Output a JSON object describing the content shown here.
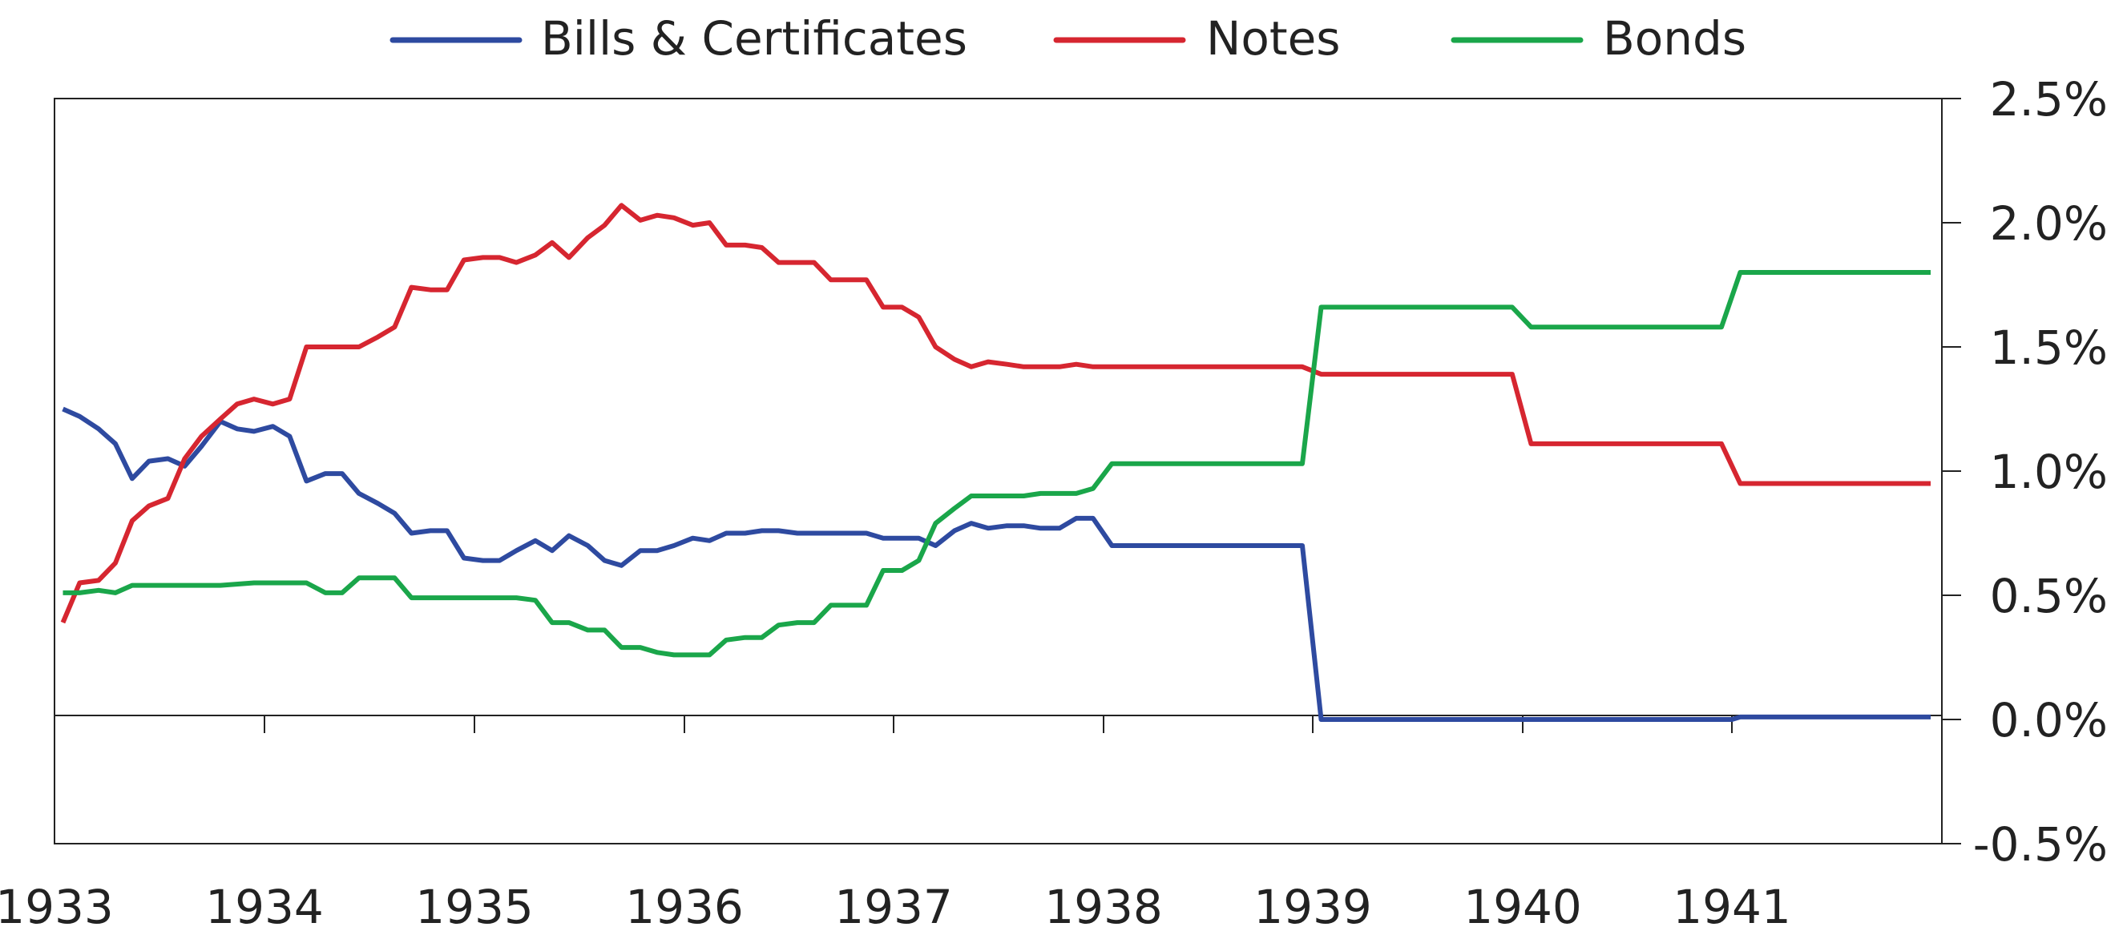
{
  "chart_data": {
    "type": "line",
    "title": "",
    "xlabel": "",
    "ylabel": "",
    "xlim": [
      1933.0,
      1942.0
    ],
    "ylim": [
      -0.5,
      2.5
    ],
    "x_ticks": [
      "1933",
      "1934",
      "1935",
      "1936",
      "1937",
      "1938",
      "1939",
      "1940",
      "1941"
    ],
    "y_ticks": [
      "2.5%",
      "2.0%",
      "1.5%",
      "1.0%",
      "0.5%",
      "0.0%",
      "-0.5%"
    ],
    "y_axis_side": "right",
    "legend_position": "top-center",
    "grid": false,
    "series": [
      {
        "name": "Bills & Certificates",
        "color": "#2e4aa0",
        "points": [
          [
            1933.04,
            1.25
          ],
          [
            1933.12,
            1.22
          ],
          [
            1933.21,
            1.17
          ],
          [
            1933.29,
            1.11
          ],
          [
            1933.37,
            0.97
          ],
          [
            1933.45,
            1.04
          ],
          [
            1933.54,
            1.05
          ],
          [
            1933.62,
            1.02
          ],
          [
            1933.7,
            1.1
          ],
          [
            1933.79,
            1.2
          ],
          [
            1933.87,
            1.17
          ],
          [
            1933.95,
            1.16
          ],
          [
            1934.04,
            1.18
          ],
          [
            1934.12,
            1.14
          ],
          [
            1934.2,
            0.96
          ],
          [
            1934.29,
            0.99
          ],
          [
            1934.37,
            0.99
          ],
          [
            1934.45,
            0.91
          ],
          [
            1934.54,
            0.87
          ],
          [
            1934.62,
            0.83
          ],
          [
            1934.7,
            0.75
          ],
          [
            1934.79,
            0.76
          ],
          [
            1934.87,
            0.76
          ],
          [
            1934.95,
            0.65
          ],
          [
            1935.04,
            0.64
          ],
          [
            1935.12,
            0.64
          ],
          [
            1935.2,
            0.68
          ],
          [
            1935.29,
            0.72
          ],
          [
            1935.37,
            0.68
          ],
          [
            1935.45,
            0.74
          ],
          [
            1935.54,
            0.7
          ],
          [
            1935.62,
            0.64
          ],
          [
            1935.7,
            0.62
          ],
          [
            1935.79,
            0.68
          ],
          [
            1935.87,
            0.68
          ],
          [
            1935.95,
            0.7
          ],
          [
            1936.04,
            0.73
          ],
          [
            1936.12,
            0.72
          ],
          [
            1936.2,
            0.75
          ],
          [
            1936.29,
            0.75
          ],
          [
            1936.37,
            0.76
          ],
          [
            1936.45,
            0.76
          ],
          [
            1936.54,
            0.75
          ],
          [
            1936.62,
            0.75
          ],
          [
            1936.7,
            0.75
          ],
          [
            1936.79,
            0.75
          ],
          [
            1936.87,
            0.75
          ],
          [
            1936.95,
            0.73
          ],
          [
            1937.04,
            0.73
          ],
          [
            1937.12,
            0.73
          ],
          [
            1937.2,
            0.7
          ],
          [
            1937.29,
            0.76
          ],
          [
            1937.37,
            0.79
          ],
          [
            1937.45,
            0.77
          ],
          [
            1937.54,
            0.78
          ],
          [
            1937.62,
            0.78
          ],
          [
            1937.7,
            0.77
          ],
          [
            1937.79,
            0.77
          ],
          [
            1937.87,
            0.81
          ],
          [
            1937.95,
            0.81
          ],
          [
            1938.04,
            0.7
          ],
          [
            1938.12,
            0.7
          ],
          [
            1938.95,
            0.7
          ],
          [
            1939.04,
            0.0
          ],
          [
            1939.95,
            0.0
          ],
          [
            1941.0,
            0.0
          ],
          [
            1941.04,
            0.01
          ],
          [
            1941.95,
            0.01
          ]
        ]
      },
      {
        "name": "Notes",
        "color": "#d62630",
        "points": [
          [
            1933.04,
            0.39
          ],
          [
            1933.12,
            0.55
          ],
          [
            1933.21,
            0.56
          ],
          [
            1933.29,
            0.63
          ],
          [
            1933.37,
            0.8
          ],
          [
            1933.45,
            0.86
          ],
          [
            1933.54,
            0.89
          ],
          [
            1933.62,
            1.05
          ],
          [
            1933.7,
            1.14
          ],
          [
            1933.79,
            1.21
          ],
          [
            1933.87,
            1.27
          ],
          [
            1933.95,
            1.29
          ],
          [
            1934.04,
            1.27
          ],
          [
            1934.12,
            1.29
          ],
          [
            1934.2,
            1.5
          ],
          [
            1934.29,
            1.5
          ],
          [
            1934.37,
            1.5
          ],
          [
            1934.45,
            1.5
          ],
          [
            1934.54,
            1.54
          ],
          [
            1934.62,
            1.58
          ],
          [
            1934.7,
            1.74
          ],
          [
            1934.79,
            1.73
          ],
          [
            1934.87,
            1.73
          ],
          [
            1934.95,
            1.85
          ],
          [
            1935.04,
            1.86
          ],
          [
            1935.12,
            1.86
          ],
          [
            1935.2,
            1.84
          ],
          [
            1935.29,
            1.87
          ],
          [
            1935.37,
            1.92
          ],
          [
            1935.45,
            1.86
          ],
          [
            1935.54,
            1.94
          ],
          [
            1935.62,
            1.99
          ],
          [
            1935.7,
            2.07
          ],
          [
            1935.79,
            2.01
          ],
          [
            1935.87,
            2.03
          ],
          [
            1935.95,
            2.02
          ],
          [
            1936.04,
            1.99
          ],
          [
            1936.12,
            2.0
          ],
          [
            1936.2,
            1.91
          ],
          [
            1936.29,
            1.91
          ],
          [
            1936.37,
            1.9
          ],
          [
            1936.45,
            1.84
          ],
          [
            1936.54,
            1.84
          ],
          [
            1936.62,
            1.84
          ],
          [
            1936.7,
            1.77
          ],
          [
            1936.79,
            1.77
          ],
          [
            1936.87,
            1.77
          ],
          [
            1936.95,
            1.66
          ],
          [
            1937.04,
            1.66
          ],
          [
            1937.12,
            1.62
          ],
          [
            1937.2,
            1.5
          ],
          [
            1937.29,
            1.45
          ],
          [
            1937.37,
            1.42
          ],
          [
            1937.45,
            1.44
          ],
          [
            1937.54,
            1.43
          ],
          [
            1937.62,
            1.42
          ],
          [
            1937.79,
            1.42
          ],
          [
            1937.87,
            1.43
          ],
          [
            1937.95,
            1.42
          ],
          [
            1938.95,
            1.42
          ],
          [
            1939.04,
            1.39
          ],
          [
            1939.95,
            1.39
          ],
          [
            1940.04,
            1.11
          ],
          [
            1940.95,
            1.11
          ],
          [
            1941.04,
            0.95
          ],
          [
            1941.95,
            0.95
          ]
        ]
      },
      {
        "name": "Bonds",
        "color": "#1aa64a",
        "points": [
          [
            1933.04,
            0.51
          ],
          [
            1933.12,
            0.51
          ],
          [
            1933.21,
            0.52
          ],
          [
            1933.29,
            0.51
          ],
          [
            1933.37,
            0.54
          ],
          [
            1933.62,
            0.54
          ],
          [
            1933.79,
            0.54
          ],
          [
            1933.95,
            0.55
          ],
          [
            1934.2,
            0.55
          ],
          [
            1934.29,
            0.51
          ],
          [
            1934.37,
            0.51
          ],
          [
            1934.45,
            0.57
          ],
          [
            1934.62,
            0.57
          ],
          [
            1934.7,
            0.49
          ],
          [
            1934.79,
            0.49
          ],
          [
            1935.2,
            0.49
          ],
          [
            1935.29,
            0.48
          ],
          [
            1935.37,
            0.39
          ],
          [
            1935.45,
            0.39
          ],
          [
            1935.54,
            0.36
          ],
          [
            1935.62,
            0.36
          ],
          [
            1935.7,
            0.29
          ],
          [
            1935.79,
            0.29
          ],
          [
            1935.87,
            0.27
          ],
          [
            1935.95,
            0.26
          ],
          [
            1936.04,
            0.26
          ],
          [
            1936.12,
            0.26
          ],
          [
            1936.2,
            0.32
          ],
          [
            1936.29,
            0.33
          ],
          [
            1936.37,
            0.33
          ],
          [
            1936.45,
            0.38
          ],
          [
            1936.54,
            0.39
          ],
          [
            1936.62,
            0.39
          ],
          [
            1936.7,
            0.46
          ],
          [
            1936.79,
            0.46
          ],
          [
            1936.87,
            0.46
          ],
          [
            1936.95,
            0.6
          ],
          [
            1937.04,
            0.6
          ],
          [
            1937.12,
            0.64
          ],
          [
            1937.2,
            0.79
          ],
          [
            1937.29,
            0.85
          ],
          [
            1937.37,
            0.9
          ],
          [
            1937.62,
            0.9
          ],
          [
            1937.7,
            0.91
          ],
          [
            1937.87,
            0.91
          ],
          [
            1937.95,
            0.93
          ],
          [
            1938.04,
            1.03
          ],
          [
            1938.95,
            1.03
          ],
          [
            1939.04,
            1.66
          ],
          [
            1939.95,
            1.66
          ],
          [
            1940.04,
            1.58
          ],
          [
            1940.95,
            1.58
          ],
          [
            1941.04,
            1.8
          ],
          [
            1941.95,
            1.8
          ]
        ]
      }
    ]
  }
}
